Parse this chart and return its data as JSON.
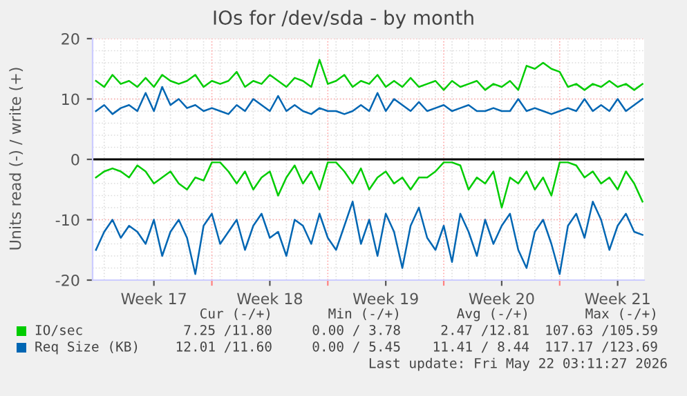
{
  "chart_data": {
    "type": "line",
    "title": "IOs for /dev/sda - by month",
    "ylabel": "Units read (-) / write (+)",
    "categories": [
      null,
      null,
      null,
      null,
      null,
      null,
      null,
      "Week 17",
      null,
      null,
      null,
      null,
      null,
      null,
      null,
      null,
      null,
      null,
      null,
      null,
      null,
      "Week 18",
      null,
      null,
      null,
      null,
      null,
      null,
      null,
      null,
      null,
      null,
      null,
      null,
      null,
      "Week 19",
      null,
      null,
      null,
      null,
      null,
      null,
      null,
      null,
      null,
      null,
      null,
      null,
      null,
      "Week 20",
      null,
      null,
      null,
      null,
      null,
      null,
      null,
      null,
      null,
      null,
      null,
      null,
      null,
      "Week 21",
      null,
      null,
      null
    ],
    "series": [
      {
        "name": "IO/sec",
        "color": "#00cc00",
        "values": [
          13,
          12,
          14,
          12.5,
          13,
          12,
          13.5,
          12,
          14,
          13,
          12.5,
          13,
          14,
          12,
          13,
          12.5,
          13,
          14.5,
          12,
          13,
          12.5,
          14,
          13,
          12,
          13.5,
          13,
          12,
          16.5,
          12.5,
          13,
          14,
          12,
          13,
          12.5,
          14,
          12,
          13,
          12,
          13.5,
          12,
          12.5,
          13,
          11.5,
          13,
          12,
          12.5,
          13,
          11.5,
          12.5,
          12,
          13,
          11.5,
          15.5,
          15,
          16,
          15,
          14.5,
          12,
          12.5,
          11.5,
          12.5,
          12,
          13,
          12,
          12.5,
          11.5,
          12.5
        ]
      },
      {
        "color": "#00cc00",
        "values": [
          -3,
          -2,
          -1.5,
          -2,
          -3,
          -1,
          -2,
          -4,
          -3,
          -2,
          -4,
          -5,
          -3,
          -3.5,
          -0.5,
          -0.5,
          -2,
          -4,
          -2,
          -5,
          -3,
          -2,
          -6,
          -3,
          -1,
          -4,
          -2,
          -5,
          -0.5,
          -0.5,
          -2,
          -4,
          -1.5,
          -5,
          -3,
          -2,
          -4,
          -3,
          -5,
          -3,
          -3,
          -2,
          -0.5,
          -0.5,
          -1,
          -5,
          -3,
          -4,
          -2,
          -8,
          -3,
          -4,
          -2,
          -5,
          -3,
          -6,
          -0.5,
          -0.5,
          -1,
          -3,
          -2,
          -4,
          -3,
          -5,
          -2,
          -4,
          -7
        ]
      },
      {
        "name": "Req Size (KB)",
        "color": "#0066b3",
        "values": [
          8,
          9,
          7.5,
          8.5,
          9,
          8,
          11,
          8,
          12,
          9,
          10,
          8.5,
          9,
          8,
          8.5,
          8,
          7.5,
          9,
          8,
          10,
          9,
          8,
          10.5,
          8,
          9,
          8,
          7.5,
          8.5,
          8,
          8,
          7.5,
          8,
          9,
          8,
          11,
          8,
          10,
          9,
          8,
          9.5,
          8,
          8.5,
          9,
          8,
          8.5,
          9,
          8,
          8,
          8.5,
          8,
          8,
          10,
          8,
          8.5,
          8,
          7.5,
          8,
          8.5,
          8,
          10,
          8,
          9,
          8,
          10,
          8,
          9,
          10
        ]
      },
      {
        "color": "#0066b3",
        "values": [
          -15,
          -12,
          -10,
          -13,
          -11,
          -12,
          -14,
          -10,
          -16,
          -12,
          -10,
          -13,
          -19,
          -11,
          -9,
          -14,
          -12,
          -10,
          -15,
          -11,
          -9,
          -13,
          -12,
          -16,
          -10,
          -11,
          -14,
          -9,
          -13,
          -15,
          -11,
          -7,
          -14,
          -10,
          -16,
          -9,
          -12,
          -18,
          -11,
          -8,
          -13,
          -15,
          -11,
          -17,
          -9,
          -12,
          -16,
          -10,
          -14,
          -11,
          -9,
          -15,
          -18,
          -12,
          -10,
          -14,
          -19,
          -11,
          -9,
          -13,
          -7,
          -10,
          -15,
          -11,
          -9,
          -12,
          -12.5
        ]
      }
    ],
    "ylim": [
      -20,
      20
    ],
    "yticks": [
      -20,
      -10,
      0,
      10,
      20
    ],
    "ref_lines": [
      {
        "axis": "y",
        "value": 0,
        "color": "#000000"
      }
    ],
    "grid": true,
    "legend": "bottom",
    "marker": "none",
    "line_style": "solid",
    "annotations": [
      "Cur (-/+)",
      "Min (-/+)",
      "Avg (-/+)",
      "Max (-/+)",
      "7.25 /11.80",
      "0.00 / 3.78",
      "2.47 /12.81",
      "107.63 /105.59",
      "12.01 /11.60",
      "0.00 / 5.45",
      "11.41 / 8.44",
      "117.17 /123.69",
      "Last update: Fri May 22 03:11:27 2026"
    ]
  }
}
